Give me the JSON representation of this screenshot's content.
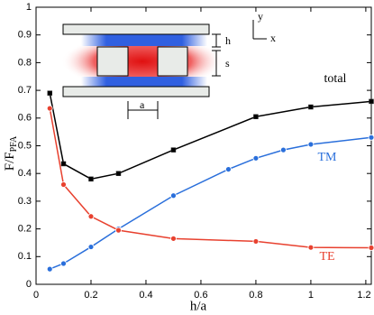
{
  "chart_data": {
    "type": "line",
    "xlabel": "h/a",
    "ylabel": {
      "text": "F/F",
      "subscript": "PFA"
    },
    "xlim": [
      0,
      1.22
    ],
    "ylim": [
      0,
      1
    ],
    "xticks": [
      0,
      0.2,
      0.4,
      0.6,
      0.8,
      1,
      1.2
    ],
    "yticks": [
      0,
      0.1,
      0.2,
      0.3,
      0.4,
      0.5,
      0.6,
      0.7,
      0.8,
      0.9,
      1
    ],
    "series": [
      {
        "name": "total",
        "color": "#000000",
        "marker": "square",
        "x": [
          0.05,
          0.1,
          0.2,
          0.3,
          0.5,
          0.8,
          1.0,
          1.22
        ],
        "values": [
          0.69,
          0.435,
          0.38,
          0.4,
          0.485,
          0.605,
          0.64,
          0.66
        ]
      },
      {
        "name": "TM",
        "color": "#2a6fdb",
        "marker": "circle",
        "x": [
          0.05,
          0.1,
          0.2,
          0.3,
          0.5,
          0.7,
          0.8,
          0.9,
          1.0,
          1.22
        ],
        "values": [
          0.055,
          0.075,
          0.135,
          0.2,
          0.32,
          0.415,
          0.455,
          0.485,
          0.505,
          0.53
        ]
      },
      {
        "name": "TE",
        "color": "#e8412f",
        "marker": "circle",
        "x": [
          0.05,
          0.1,
          0.2,
          0.3,
          0.5,
          0.8,
          1.0,
          1.22
        ],
        "values": [
          0.635,
          0.36,
          0.245,
          0.195,
          0.165,
          0.155,
          0.133,
          0.132
        ]
      }
    ],
    "inset": {
      "axis_labels": [
        "y",
        "x"
      ],
      "dimension_labels": [
        "h",
        "s",
        "a"
      ]
    }
  }
}
